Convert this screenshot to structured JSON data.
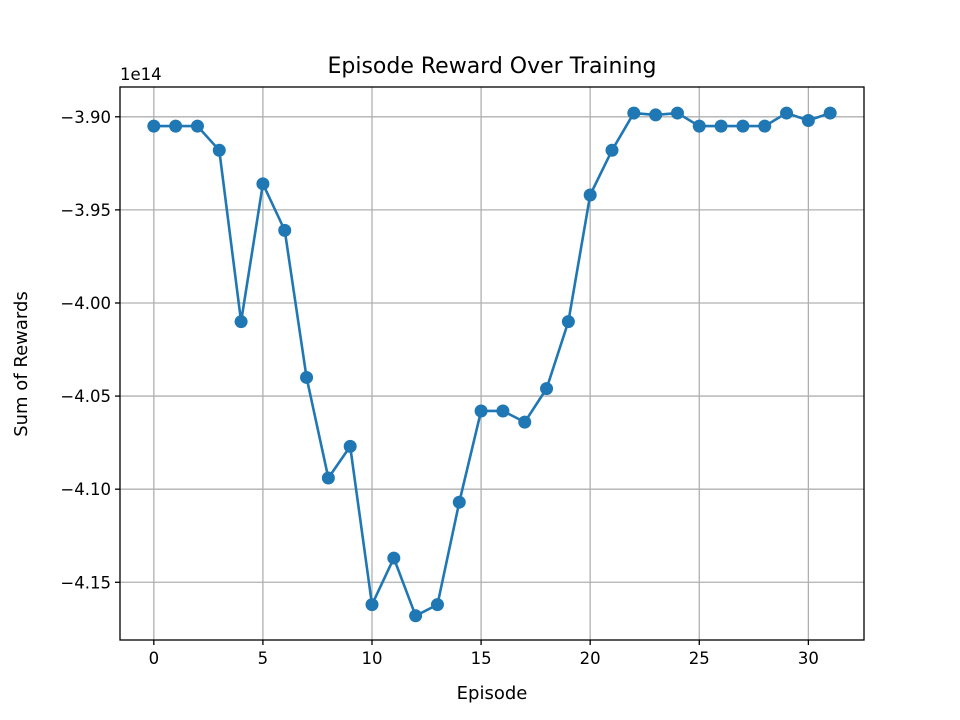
{
  "chart_data": {
    "type": "line",
    "title": "Episode Reward Over Training",
    "xlabel": "Episode",
    "ylabel": "Sum of Rewards",
    "offset_text": "1e14",
    "xlim": [
      -1.55,
      32.55
    ],
    "ylim": [
      -4.181,
      -3.884
    ],
    "xticks": [
      0,
      5,
      10,
      15,
      20,
      25,
      30
    ],
    "xtick_labels": [
      "0",
      "5",
      "10",
      "15",
      "20",
      "25",
      "30"
    ],
    "yticks": [
      -3.9,
      -3.95,
      -4.0,
      -4.05,
      -4.1,
      -4.15
    ],
    "ytick_labels": [
      "−3.90",
      "−3.95",
      "−4.00",
      "−4.05",
      "−4.10",
      "−4.15"
    ],
    "grid": true,
    "color": "#1f77b4",
    "series": [
      {
        "x": [
          0,
          1,
          2,
          3,
          4,
          5,
          6,
          7,
          8,
          9,
          10,
          11,
          12,
          13,
          14,
          15,
          16,
          17,
          18,
          19,
          20,
          21,
          22,
          23,
          24,
          25,
          26,
          27,
          28,
          29,
          30,
          31
        ],
        "values": [
          -3.905,
          -3.905,
          -3.905,
          -3.918,
          -4.01,
          -3.936,
          -3.961,
          -4.04,
          -4.094,
          -4.077,
          -4.162,
          -4.137,
          -4.168,
          -4.162,
          -4.107,
          -4.058,
          -4.058,
          -4.064,
          -4.046,
          -4.01,
          -3.942,
          -3.918,
          -3.898,
          -3.899,
          -3.898,
          -3.905,
          -3.905,
          -3.905,
          -3.905,
          -3.898,
          -3.902,
          -3.898
        ]
      }
    ]
  }
}
